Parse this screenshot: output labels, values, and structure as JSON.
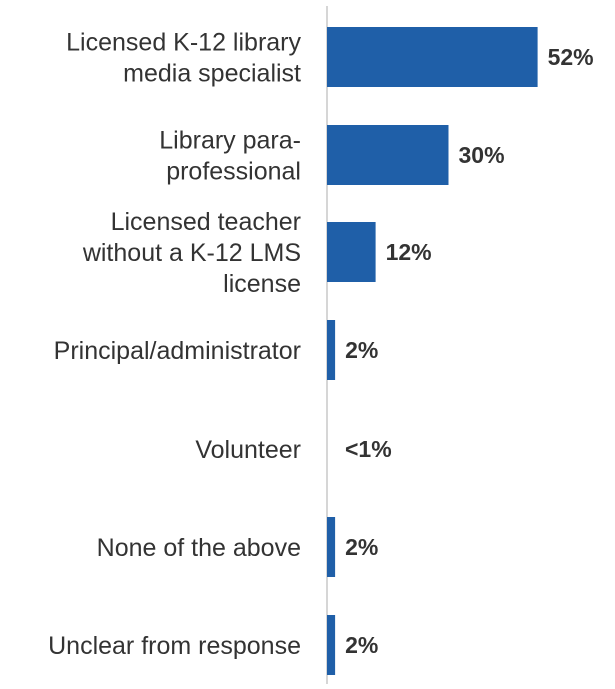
{
  "chart_data": {
    "type": "bar",
    "orientation": "horizontal",
    "categories": [
      [
        "Licensed K-12 library",
        "media specialist"
      ],
      [
        "Library para-",
        "professional"
      ],
      [
        "Licensed teacher",
        "without a K-12 LMS",
        "license"
      ],
      [
        "Principal/administrator"
      ],
      [
        "Volunteer"
      ],
      [
        "None of the above"
      ],
      [
        "Unclear from response"
      ]
    ],
    "values": [
      52,
      30,
      12,
      2,
      0.5,
      2,
      2
    ],
    "value_labels": [
      "52%",
      "30%",
      "12%",
      "2%",
      "<1%",
      "2%",
      "2%"
    ],
    "title": "",
    "xlabel": "",
    "ylabel": "",
    "xlim": [
      0,
      60
    ],
    "grid": false,
    "legend": "none",
    "bar_color": "#1f5fa8",
    "axis_color": "#c8c8c8",
    "text_color": "#333333"
  }
}
